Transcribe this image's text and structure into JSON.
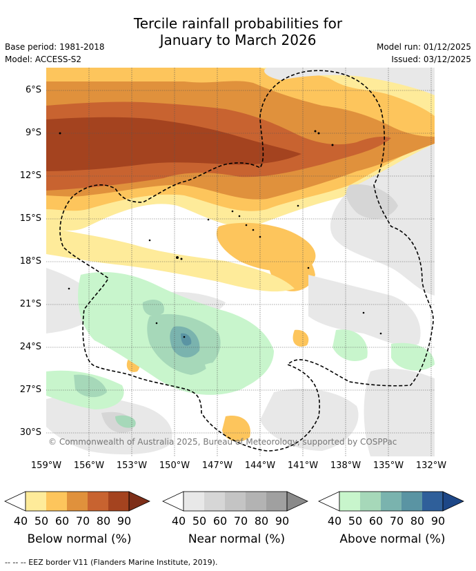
{
  "title_line1": "Tercile rainfall probabilities for",
  "title_line2": "January to March 2026",
  "meta": {
    "base_period": "Base period: 1981-2018",
    "model": "Model: ACCESS-S2",
    "model_run": "Model run: 01/12/2025",
    "issued": "Issued: 03/12/2025"
  },
  "map": {
    "lat_labels": [
      "6°S",
      "9°S",
      "12°S",
      "15°S",
      "18°S",
      "21°S",
      "24°S",
      "27°S",
      "30°S"
    ],
    "lon_labels": [
      "159°W",
      "156°W",
      "153°W",
      "150°W",
      "147°W",
      "144°W",
      "141°W",
      "138°W",
      "135°W",
      "132°W"
    ],
    "copyright": "© Commonwealth of Australia 2025, Bureau of Meteorology, supported by COSPPac"
  },
  "colorbars": [
    {
      "title": "Below normal (%)",
      "ticks": [
        "40",
        "50",
        "60",
        "70",
        "80",
        "90"
      ],
      "colors": [
        "#ffffff",
        "#feeb9a",
        "#fdc55c",
        "#e0913c",
        "#c86330",
        "#a4431f",
        "#7d2e18"
      ]
    },
    {
      "title": "Near normal (%)",
      "ticks": [
        "40",
        "50",
        "60",
        "70",
        "80",
        "90"
      ],
      "colors": [
        "#ffffff",
        "#e8e8e8",
        "#d6d6d6",
        "#c4c4c4",
        "#b3b3b3",
        "#a0a0a0",
        "#8a8a8a"
      ]
    },
    {
      "title": "Above normal (%)",
      "ticks": [
        "40",
        "50",
        "60",
        "70",
        "80",
        "90"
      ],
      "colors": [
        "#ffffff",
        "#c8f5cc",
        "#a6d8b9",
        "#7ab3ae",
        "#5a94a3",
        "#2f5f9a",
        "#1d4787"
      ]
    }
  ],
  "footer": "--  --  -- EEZ border V11 (Flanders Marine Institute, 2019)."
}
